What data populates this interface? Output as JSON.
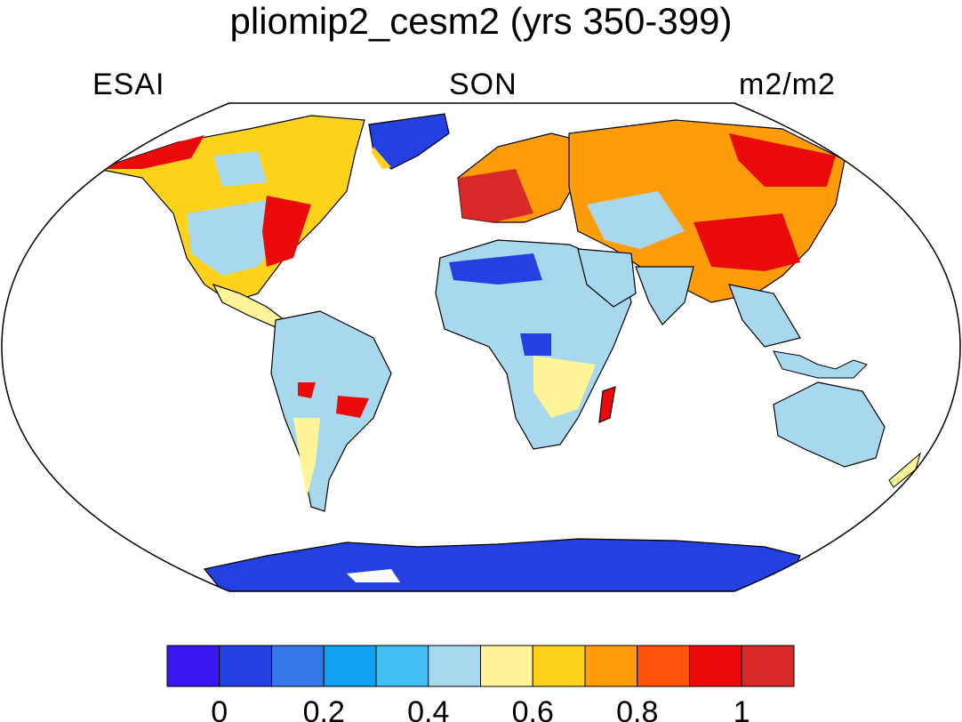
{
  "title": "pliomip2_cesm2 (yrs 350-399)",
  "labels": {
    "left": "ESAI",
    "center": "SON",
    "right": "m2/m2"
  },
  "colorbar": {
    "colors": [
      "#3b14f2",
      "#2340e0",
      "#3478ea",
      "#10a0f4",
      "#40c0f2",
      "#a8d8ee",
      "#fff598",
      "#ffd21c",
      "#ff9c0a",
      "#ff520a",
      "#ea0a0a",
      "#d82828"
    ],
    "tick_labels": [
      "0",
      "0.2",
      "0.4",
      "0.6",
      "0.8",
      "1"
    ]
  }
}
